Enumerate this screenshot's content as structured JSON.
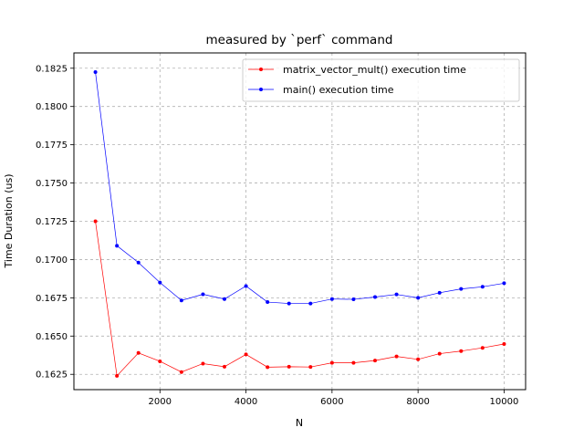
{
  "chart_data": {
    "type": "line",
    "title": "measured by `perf` command",
    "xlabel": "N",
    "ylabel": "Time Duration (us)",
    "xlim": [
      0,
      10500
    ],
    "ylim": [
      0.1615,
      0.1835
    ],
    "xticks": [
      2000,
      4000,
      6000,
      8000,
      10000
    ],
    "yticks": [
      0.1625,
      0.165,
      0.1675,
      0.17,
      0.1725,
      0.175,
      0.1775,
      0.18,
      0.1825
    ],
    "xtick_labels": [
      "2000",
      "4000",
      "6000",
      "8000",
      "10000"
    ],
    "ytick_labels": [
      "0.1625",
      "0.1650",
      "0.1675",
      "0.1700",
      "0.1725",
      "0.1750",
      "0.1775",
      "0.1800",
      "0.1825"
    ],
    "grid": true,
    "legend_position": "top-right",
    "x": [
      500,
      1000,
      1500,
      2000,
      2500,
      3000,
      3500,
      4000,
      4500,
      5000,
      5500,
      6000,
      6500,
      7000,
      7500,
      8000,
      8500,
      9000,
      9500,
      10000
    ],
    "series": [
      {
        "name": "matrix_vector_mult() execution time",
        "color": "#ff0000",
        "marker": "dot",
        "values": [
          0.1725,
          0.1624,
          0.1639,
          0.16335,
          0.16265,
          0.1632,
          0.163,
          0.1638,
          0.16297,
          0.163,
          0.16298,
          0.16325,
          0.16325,
          0.1634,
          0.16367,
          0.16348,
          0.16385,
          0.16402,
          0.16423,
          0.16448
        ]
      },
      {
        "name": "main() execution time",
        "color": "#0000ff",
        "marker": "dot",
        "values": [
          0.18225,
          0.1709,
          0.1698,
          0.1685,
          0.16733,
          0.16773,
          0.16742,
          0.16827,
          0.16722,
          0.16713,
          0.16713,
          0.16742,
          0.1674,
          0.16755,
          0.16772,
          0.1675,
          0.16783,
          0.16808,
          0.16822,
          0.16845
        ]
      }
    ]
  }
}
